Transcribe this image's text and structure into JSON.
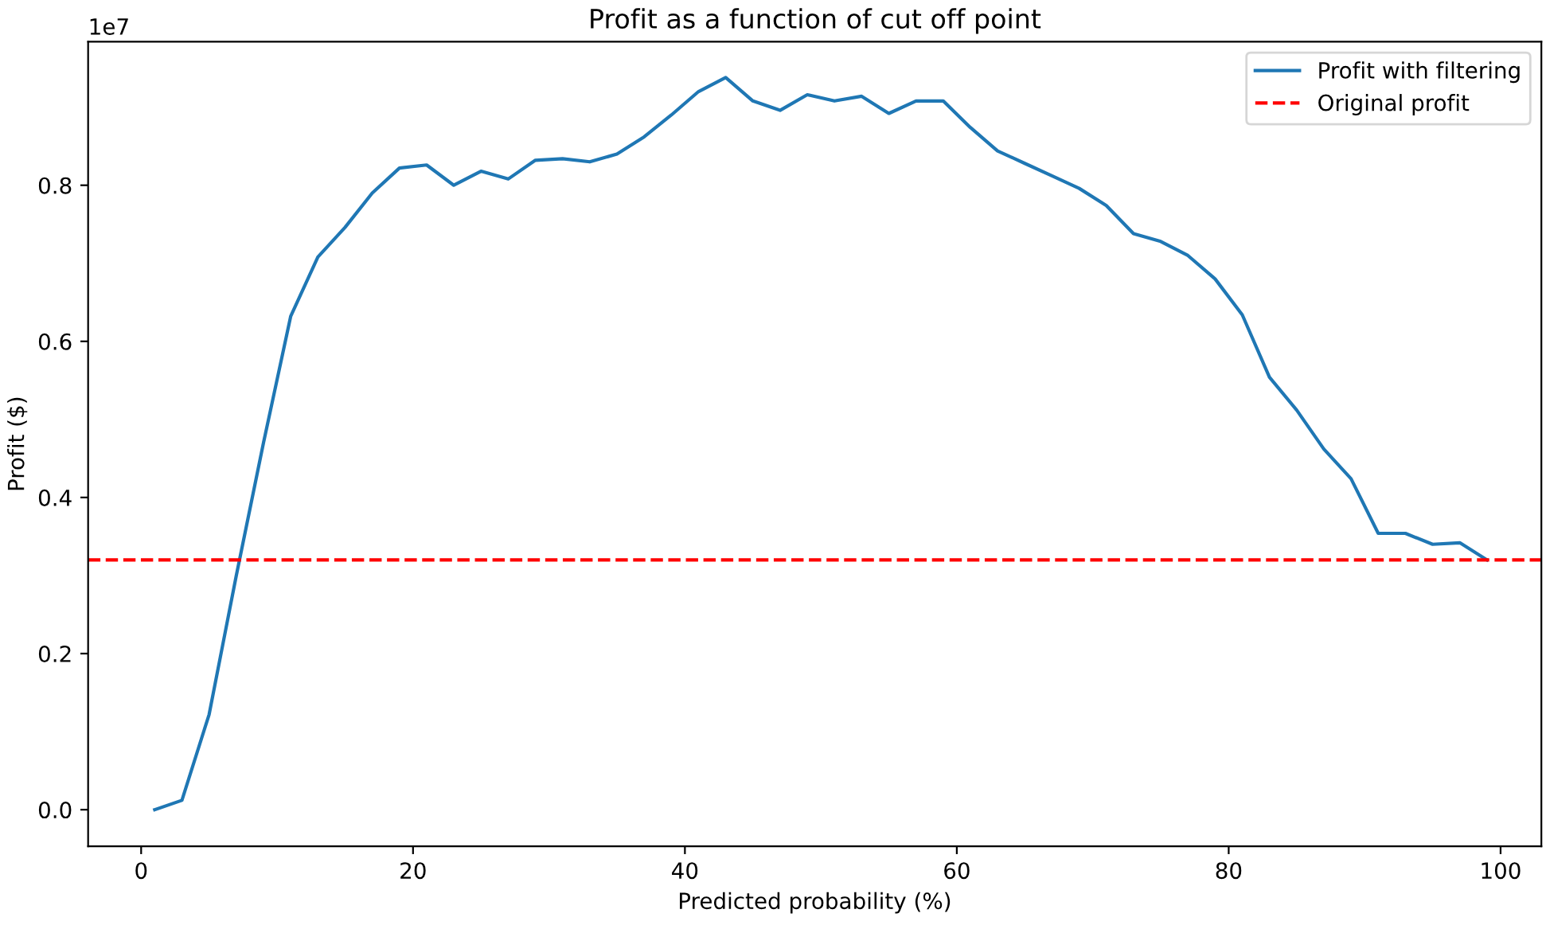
{
  "chart_data": {
    "type": "line",
    "title": "Profit as a function of cut off point",
    "xlabel": "Predicted probability (%)",
    "ylabel": "Profit ($)",
    "annotations": [
      "1e7"
    ],
    "x": [
      1,
      3,
      5,
      7,
      9,
      11,
      13,
      15,
      17,
      19,
      21,
      23,
      25,
      27,
      29,
      31,
      33,
      35,
      37,
      39,
      41,
      43,
      45,
      47,
      49,
      51,
      53,
      55,
      57,
      59,
      61,
      63,
      65,
      67,
      69,
      71,
      73,
      75,
      77,
      79,
      81,
      83,
      85,
      87,
      89,
      91,
      93,
      95,
      97,
      99
    ],
    "series": [
      {
        "name": "Profit with filtering",
        "color": "#1f77b4",
        "values": [
          0.0,
          0.012,
          0.122,
          0.3,
          0.47,
          0.632,
          0.708,
          0.746,
          0.79,
          0.822,
          0.826,
          0.8,
          0.818,
          0.808,
          0.832,
          0.834,
          0.83,
          0.84,
          0.862,
          0.89,
          0.92,
          0.938,
          0.908,
          0.896,
          0.916,
          0.908,
          0.914,
          0.892,
          0.908,
          0.908,
          0.874,
          0.844,
          0.828,
          0.812,
          0.796,
          0.774,
          0.738,
          0.728,
          0.71,
          0.68,
          0.634,
          0.554,
          0.512,
          0.462,
          0.424,
          0.354,
          0.354,
          0.34,
          0.342,
          0.32
        ]
      }
    ],
    "ref_lines": [
      {
        "axis": "y",
        "value": 0.32,
        "label": "Original profit",
        "color": "#ff0000",
        "line_style": "dashed"
      }
    ],
    "xlim": [
      -3.9,
      103
    ],
    "ylim": [
      -0.047,
      0.984
    ],
    "xticks": [
      0,
      20,
      40,
      60,
      80,
      100
    ],
    "yticks": [
      {
        "value": 0,
        "label": "0.0"
      },
      {
        "value": 0.2,
        "label": "0.2"
      },
      {
        "value": 0.4,
        "label": "0.4"
      },
      {
        "value": 0.6,
        "label": "0.6"
      },
      {
        "value": 0.8,
        "label": "0.8"
      }
    ],
    "legend": "top right",
    "grid": false,
    "line_style": "solid",
    "marker": "none"
  }
}
